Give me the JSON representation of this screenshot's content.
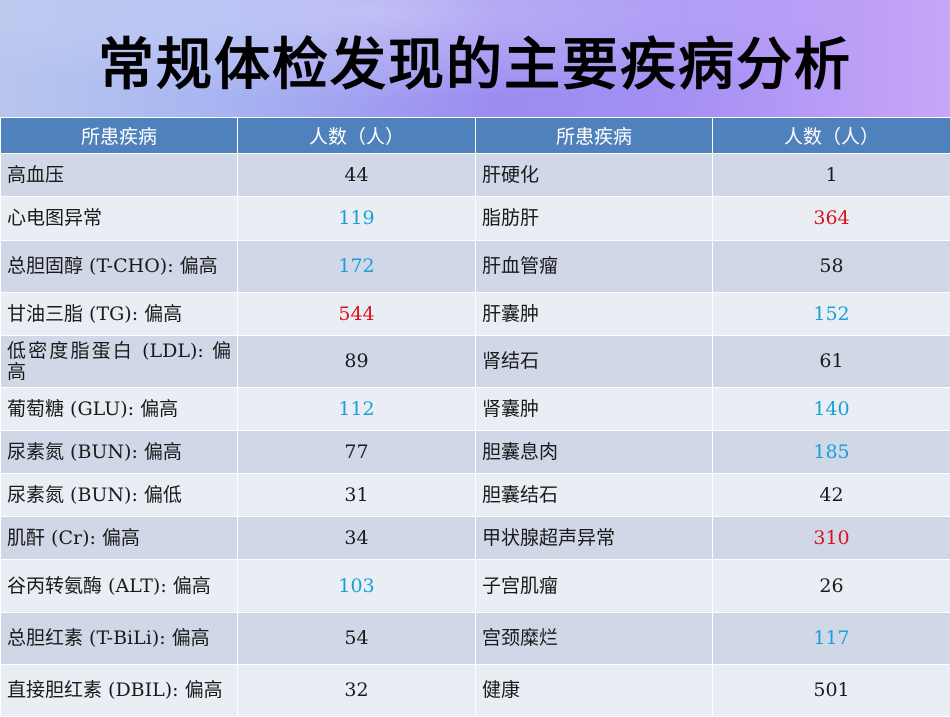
{
  "title": "常规体检发现的主要疾病分析",
  "headers": [
    "所患疾病",
    "人数（人）",
    "所患疾病",
    "人数（人）"
  ],
  "colors": {
    "header_bg": "#4f81bd",
    "row_odd": "#d0d8e8",
    "row_even": "#e9edf4",
    "highlight_blue": "#1aa0d8",
    "highlight_red": "#e0101a"
  },
  "rows": [
    {
      "d1": "高血压",
      "n1": "44",
      "c1": "",
      "d2": "肝硬化",
      "n2": "1",
      "c2": ""
    },
    {
      "d1": "心电图异常",
      "n1": "119",
      "c1": "blue",
      "d2": "脂肪肝",
      "n2": "364",
      "c2": "red"
    },
    {
      "d1": "总胆固醇 (T-CHO): 偏高",
      "n1": "172",
      "c1": "blue",
      "d2": "肝血管瘤",
      "n2": "58",
      "c2": ""
    },
    {
      "d1": "甘油三脂 (TG): 偏高",
      "n1": "544",
      "c1": "red",
      "d2": "肝囊肿",
      "n2": "152",
      "c2": "blue"
    },
    {
      "d1": "低密度脂蛋白 (LDL): 偏高",
      "n1": "89",
      "c1": "",
      "d2": "肾结石",
      "n2": "61",
      "c2": ""
    },
    {
      "d1": "葡萄糖 (GLU): 偏高",
      "n1": "112",
      "c1": "blue",
      "d2": "肾囊肿",
      "n2": "140",
      "c2": "blue"
    },
    {
      "d1": "尿素氮 (BUN): 偏高",
      "n1": "77",
      "c1": "",
      "d2": "胆囊息肉",
      "n2": "185",
      "c2": "blue"
    },
    {
      "d1": "尿素氮 (BUN): 偏低",
      "n1": "31",
      "c1": "",
      "d2": "胆囊结石",
      "n2": "42",
      "c2": ""
    },
    {
      "d1": "肌酐 (Cr): 偏高",
      "n1": "34",
      "c1": "",
      "d2": "甲状腺超声异常",
      "n2": "310",
      "c2": "red"
    },
    {
      "d1": "谷丙转氨酶 (ALT): 偏高",
      "n1": "103",
      "c1": "blue",
      "d2": "子宫肌瘤",
      "n2": "26",
      "c2": ""
    },
    {
      "d1": "总胆红素 (T-BiLi): 偏高",
      "n1": "54",
      "c1": "",
      "d2": "宫颈糜烂",
      "n2": "117",
      "c2": "blue"
    },
    {
      "d1": "直接胆红素 (DBIL): 偏高",
      "n1": "32",
      "c1": "",
      "d2": "健康",
      "n2": "501",
      "c2": ""
    }
  ]
}
